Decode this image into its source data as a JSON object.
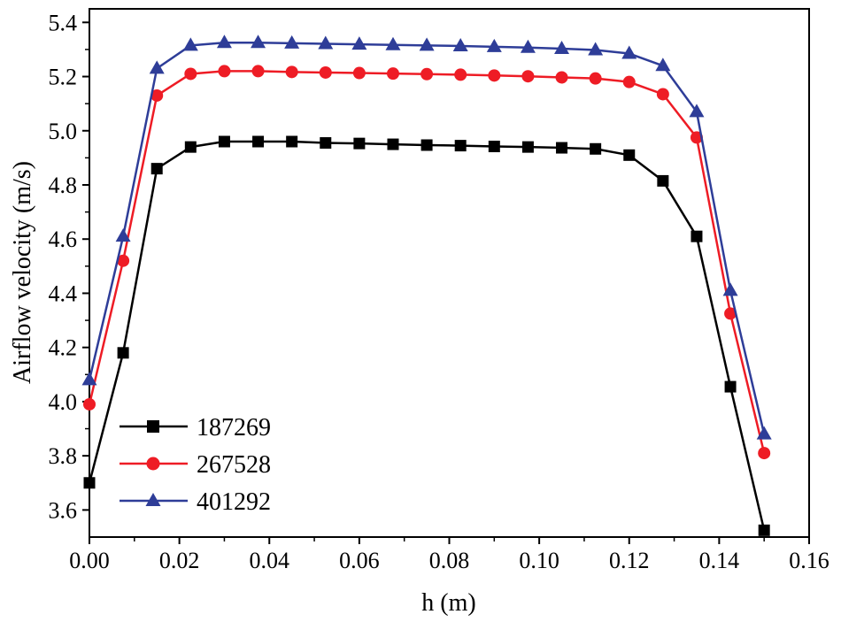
{
  "chart_data": {
    "type": "line",
    "title": "",
    "xlabel": "h (m)",
    "ylabel": "Airflow velocity (m/s)",
    "xlim": [
      0,
      0.16
    ],
    "ylim": [
      3.5,
      5.45
    ],
    "x_ticks": [
      "0.00",
      "0.02",
      "0.04",
      "0.06",
      "0.08",
      "0.10",
      "0.12",
      "0.14",
      "0.16"
    ],
    "y_ticks": [
      "3.6",
      "3.8",
      "4.0",
      "4.2",
      "4.4",
      "4.6",
      "4.8",
      "5.0",
      "5.2",
      "5.4"
    ],
    "grid": false,
    "legend_position": "bottom-left",
    "x": [
      0,
      0.0075,
      0.015,
      0.0225,
      0.03,
      0.0375,
      0.045,
      0.0525,
      0.06,
      0.0675,
      0.075,
      0.0825,
      0.09,
      0.0975,
      0.105,
      0.1125,
      0.12,
      0.1275,
      0.135,
      0.1425,
      0.15
    ],
    "series": [
      {
        "name": "187269",
        "color": "#000000",
        "marker": "square",
        "values": [
          3.7,
          4.18,
          4.86,
          4.94,
          4.96,
          4.96,
          4.96,
          4.955,
          4.953,
          4.95,
          4.947,
          4.945,
          4.942,
          4.94,
          4.937,
          4.933,
          4.91,
          4.815,
          4.61,
          4.055,
          3.525
        ]
      },
      {
        "name": "267528",
        "color": "#ee1c25",
        "marker": "circle",
        "values": [
          3.99,
          4.52,
          5.13,
          5.21,
          5.22,
          5.22,
          5.217,
          5.215,
          5.213,
          5.211,
          5.209,
          5.207,
          5.204,
          5.201,
          5.197,
          5.193,
          5.18,
          5.135,
          4.975,
          4.325,
          3.81
        ]
      },
      {
        "name": "401292",
        "color": "#2e3d98",
        "marker": "triangle",
        "values": [
          4.08,
          4.61,
          5.23,
          5.315,
          5.325,
          5.325,
          5.323,
          5.321,
          5.319,
          5.317,
          5.315,
          5.313,
          5.31,
          5.307,
          5.303,
          5.298,
          5.285,
          5.24,
          5.07,
          4.41,
          3.88
        ]
      }
    ]
  }
}
